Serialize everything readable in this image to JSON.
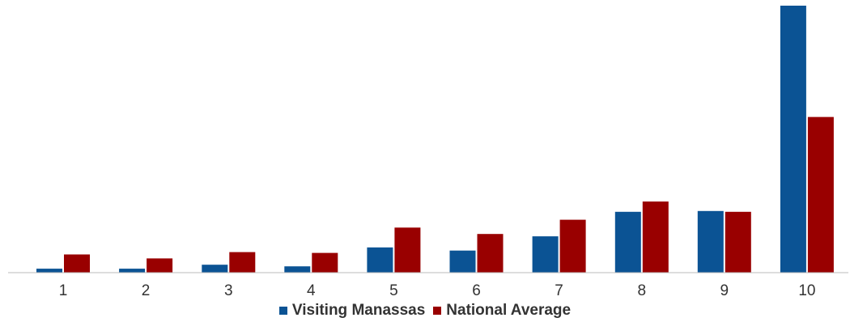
{
  "chart_data": {
    "type": "bar",
    "title": "",
    "xlabel": "",
    "ylabel": "",
    "categories": [
      "1",
      "2",
      "3",
      "4",
      "5",
      "6",
      "7",
      "8",
      "9",
      "10"
    ],
    "series": [
      {
        "name": "Visiting Manassas",
        "color": "#0b5394",
        "values": [
          0.5,
          0.5,
          1.0,
          0.8,
          3.2,
          2.8,
          4.6,
          7.7,
          7.8,
          33.8
        ]
      },
      {
        "name": "National Average",
        "color": "#990000",
        "values": [
          2.3,
          1.8,
          2.6,
          2.5,
          5.7,
          4.9,
          6.7,
          9.0,
          7.7,
          19.7
        ]
      }
    ],
    "ylim": [
      0,
      34
    ],
    "grid": false,
    "legend": "bottom-center"
  }
}
